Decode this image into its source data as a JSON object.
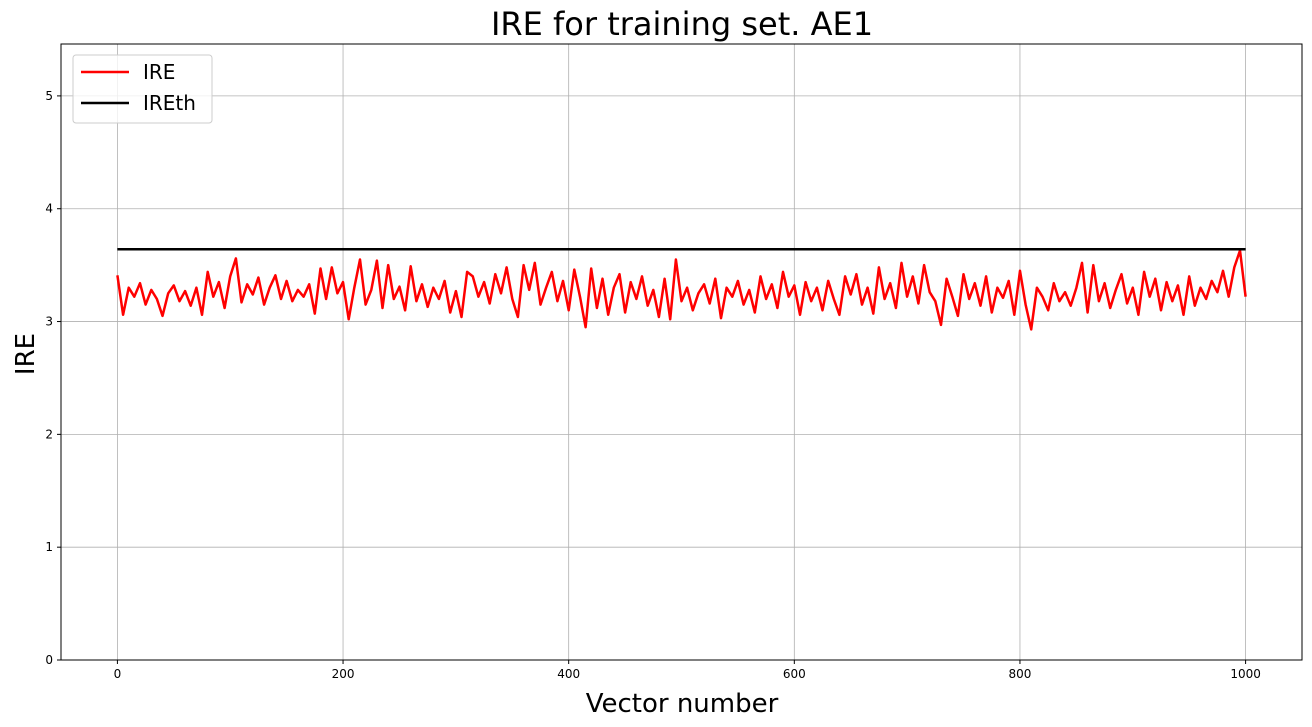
{
  "chart_data": {
    "type": "line",
    "title": "IRE for training set. AE1",
    "xlabel": "Vector number",
    "ylabel": "IRE",
    "xlim": [
      -50,
      1050
    ],
    "ylim": [
      0,
      5.46
    ],
    "xticks": [
      "0",
      "200",
      "400",
      "600",
      "800",
      "1000"
    ],
    "yticks": [
      "0",
      "1",
      "2",
      "3",
      "4",
      "5"
    ],
    "grid": true,
    "legend_position": "top-left",
    "series": [
      {
        "name": "IRE",
        "color": "#ff0000",
        "x": [
          0,
          5,
          10,
          15,
          20,
          25,
          30,
          35,
          40,
          45,
          50,
          55,
          60,
          65,
          70,
          75,
          80,
          85,
          90,
          95,
          100,
          105,
          110,
          115,
          120,
          125,
          130,
          135,
          140,
          145,
          150,
          155,
          160,
          165,
          170,
          175,
          180,
          185,
          190,
          195,
          200,
          205,
          210,
          215,
          220,
          225,
          230,
          235,
          240,
          245,
          250,
          255,
          260,
          265,
          270,
          275,
          280,
          285,
          290,
          295,
          300,
          305,
          310,
          315,
          320,
          325,
          330,
          335,
          340,
          345,
          350,
          355,
          360,
          365,
          370,
          375,
          380,
          385,
          390,
          395,
          400,
          405,
          410,
          415,
          420,
          425,
          430,
          435,
          440,
          445,
          450,
          455,
          460,
          465,
          470,
          475,
          480,
          485,
          490,
          495,
          500,
          505,
          510,
          515,
          520,
          525,
          530,
          535,
          540,
          545,
          550,
          555,
          560,
          565,
          570,
          575,
          580,
          585,
          590,
          595,
          600,
          605,
          610,
          615,
          620,
          625,
          630,
          635,
          640,
          645,
          650,
          655,
          660,
          665,
          670,
          675,
          680,
          685,
          690,
          695,
          700,
          705,
          710,
          715,
          720,
          725,
          730,
          735,
          740,
          745,
          750,
          755,
          760,
          765,
          770,
          775,
          780,
          785,
          790,
          795,
          800,
          805,
          810,
          815,
          820,
          825,
          830,
          835,
          840,
          845,
          850,
          855,
          860,
          865,
          870,
          875,
          880,
          885,
          890,
          895,
          900,
          905,
          910,
          915,
          920,
          925,
          930,
          935,
          940,
          945,
          950,
          955,
          960,
          965,
          970,
          975,
          980,
          985,
          990,
          995,
          1000
        ],
        "y": [
          3.41,
          3.06,
          3.3,
          3.22,
          3.34,
          3.15,
          3.28,
          3.2,
          3.05,
          3.25,
          3.32,
          3.18,
          3.27,
          3.14,
          3.3,
          3.06,
          3.44,
          3.22,
          3.35,
          3.12,
          3.4,
          3.56,
          3.17,
          3.33,
          3.24,
          3.39,
          3.15,
          3.3,
          3.41,
          3.2,
          3.36,
          3.18,
          3.28,
          3.22,
          3.33,
          3.07,
          3.47,
          3.2,
          3.48,
          3.25,
          3.35,
          3.02,
          3.3,
          3.55,
          3.15,
          3.28,
          3.54,
          3.12,
          3.5,
          3.2,
          3.31,
          3.1,
          3.49,
          3.18,
          3.33,
          3.13,
          3.3,
          3.2,
          3.36,
          3.08,
          3.27,
          3.04,
          3.44,
          3.4,
          3.22,
          3.35,
          3.16,
          3.42,
          3.25,
          3.48,
          3.2,
          3.04,
          3.5,
          3.28,
          3.52,
          3.15,
          3.3,
          3.44,
          3.18,
          3.36,
          3.1,
          3.46,
          3.22,
          2.95,
          3.47,
          3.12,
          3.38,
          3.06,
          3.3,
          3.42,
          3.08,
          3.35,
          3.2,
          3.4,
          3.14,
          3.28,
          3.04,
          3.38,
          3.02,
          3.55,
          3.18,
          3.3,
          3.1,
          3.25,
          3.33,
          3.16,
          3.38,
          3.03,
          3.3,
          3.22,
          3.36,
          3.15,
          3.28,
          3.08,
          3.4,
          3.2,
          3.33,
          3.12,
          3.44,
          3.22,
          3.32,
          3.06,
          3.35,
          3.18,
          3.3,
          3.1,
          3.36,
          3.2,
          3.06,
          3.4,
          3.24,
          3.42,
          3.15,
          3.3,
          3.07,
          3.48,
          3.2,
          3.34,
          3.12,
          3.52,
          3.22,
          3.4,
          3.16,
          3.5,
          3.26,
          3.18,
          2.97,
          3.38,
          3.22,
          3.05,
          3.42,
          3.2,
          3.34,
          3.14,
          3.4,
          3.08,
          3.3,
          3.21,
          3.36,
          3.06,
          3.45,
          3.15,
          2.93,
          3.3,
          3.22,
          3.1,
          3.34,
          3.18,
          3.26,
          3.14,
          3.3,
          3.52,
          3.08,
          3.5,
          3.18,
          3.34,
          3.12,
          3.28,
          3.42,
          3.16,
          3.3,
          3.06,
          3.44,
          3.22,
          3.38,
          3.1,
          3.35,
          3.18,
          3.32,
          3.06,
          3.4,
          3.14,
          3.3,
          3.2,
          3.36,
          3.26,
          3.45,
          3.22,
          3.48,
          3.63,
          3.22
        ]
      },
      {
        "name": "IREth",
        "color": "#000000",
        "x": [
          0,
          1000
        ],
        "y": [
          3.64,
          3.64
        ]
      }
    ]
  }
}
